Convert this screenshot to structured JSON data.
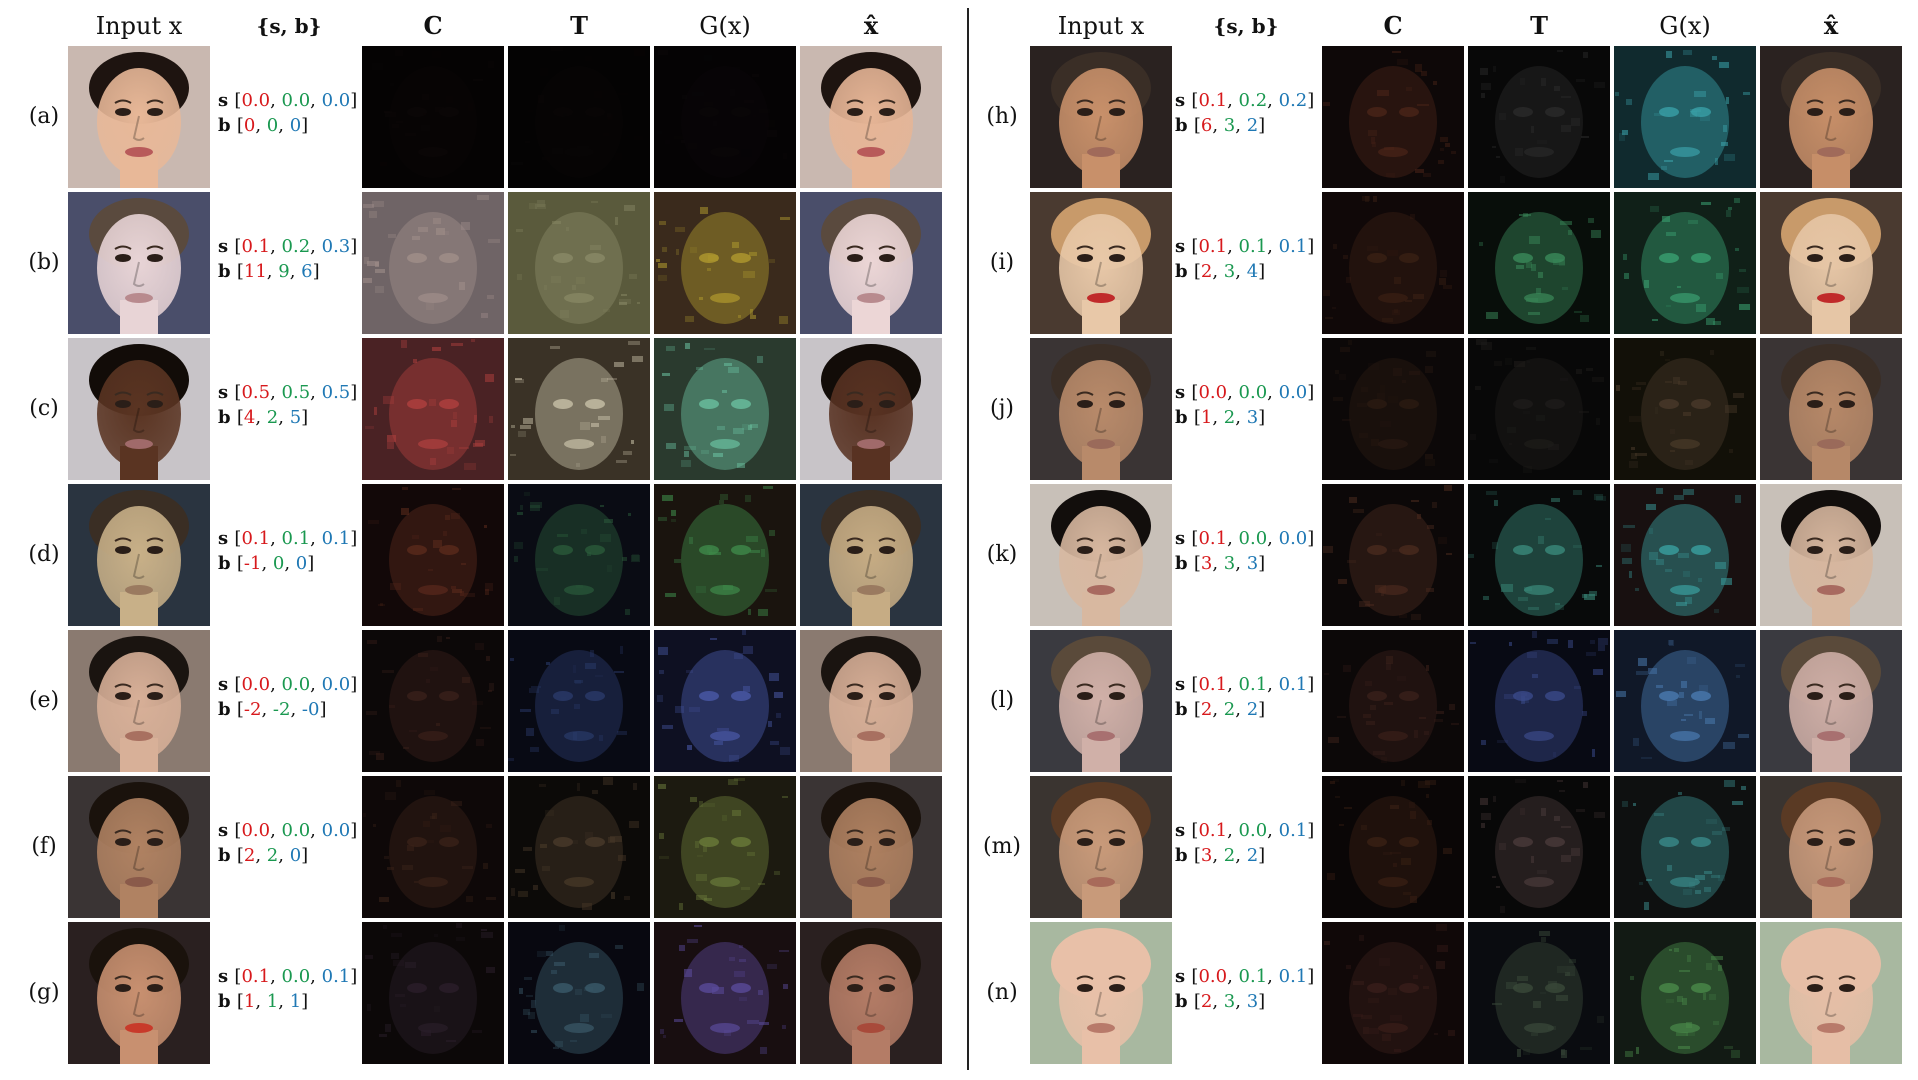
{
  "figure": {
    "headers": {
      "input": "Input x",
      "params": "{s, b}",
      "c": "C",
      "t": "T",
      "gx": "G(x)",
      "xhat": "x̂"
    },
    "palette": {
      "s0": "#d7191c",
      "s1": "#1a9850",
      "s2": "#1f78b4"
    },
    "panels": [
      {
        "rows": [
          {
            "label": "(a)",
            "s": [
              "0.0",
              "0.0",
              "0.0"
            ],
            "b": [
              "0",
              "0",
              "0"
            ],
            "input": {
              "skin": "#e8b898",
              "hair": "#1e1410",
              "bg": "#c9b8b0",
              "lips": "#b85a5a"
            },
            "C": {
              "base": "#050303",
              "glow": "#0b0707"
            },
            "T": {
              "base": "#040303",
              "glow": "#090606"
            },
            "G": {
              "base": "#050304",
              "glow": "#0a0708"
            },
            "xhat": {
              "skin": "#e6b596",
              "hair": "#1e1410",
              "bg": "#c9b8b0",
              "lips": "#b85a5a"
            }
          },
          {
            "label": "(b)",
            "s": [
              "0.1",
              "0.2",
              "0.3"
            ],
            "b": [
              "11",
              "9",
              "6"
            ],
            "input": {
              "skin": "#e8d4d6",
              "hair": "#5a4a3e",
              "bg": "#4a4e6a",
              "lips": "#b88a8e"
            },
            "C": {
              "base": "#6f6466",
              "glow": "#a08e8a"
            },
            "T": {
              "base": "#5a5a3c",
              "glow": "#8a8a66"
            },
            "G": {
              "base": "#3a2a1c",
              "glow": "#b09a2e"
            },
            "xhat": {
              "skin": "#ecd6d6",
              "hair": "#5a4a3e",
              "bg": "#4a4e6a",
              "lips": "#b88a8e"
            }
          },
          {
            "label": "(c)",
            "s": [
              "0.5",
              "0.5",
              "0.5"
            ],
            "b": [
              "4",
              "2",
              "5"
            ],
            "input": {
              "skin": "#5a3422",
              "hair": "#120c08",
              "bg": "#c8c4c8",
              "lips": "#a06a6a"
            },
            "C": {
              "base": "#4a2224",
              "glow": "#b0403e"
            },
            "T": {
              "base": "#3a3226",
              "glow": "#c8c0a8"
            },
            "G": {
              "base": "#2a3a2e",
              "glow": "#6ac0a0"
            },
            "xhat": {
              "skin": "#583222",
              "hair": "#120c08",
              "bg": "#c8c4c8",
              "lips": "#a06a6a"
            }
          },
          {
            "label": "(d)",
            "s": [
              "0.1",
              "0.1",
              "0.1"
            ],
            "b": [
              "-1",
              "0",
              "0"
            ],
            "input": {
              "skin": "#c8b088",
              "hair": "#3a2e24",
              "bg": "#2a3440",
              "lips": "#9a7a60"
            },
            "C": {
              "base": "#120808",
              "glow": "#5a2a1c"
            },
            "T": {
              "base": "#0a0c14",
              "glow": "#2a5a3a"
            },
            "G": {
              "base": "#1a140e",
              "glow": "#3e8a4a"
            },
            "xhat": {
              "skin": "#c6ac84",
              "hair": "#3a2e24",
              "bg": "#2a3440",
              "lips": "#9a7a60"
            }
          },
          {
            "label": "(e)",
            "s": [
              "0.0",
              "0.0",
              "0.0"
            ],
            "b": [
              "-2",
              "-2",
              "-0"
            ],
            "input": {
              "skin": "#d8b098",
              "hair": "#1a1410",
              "bg": "#8a7a70",
              "lips": "#a87060"
            },
            "C": {
              "base": "#0c0808",
              "glow": "#3a201a"
            },
            "T": {
              "base": "#080a14",
              "glow": "#2a3a6a"
            },
            "G": {
              "base": "#0e1022",
              "glow": "#4a5aa8"
            },
            "xhat": {
              "skin": "#d6ae96",
              "hair": "#1a1410",
              "bg": "#8a7a70",
              "lips": "#a87060"
            }
          },
          {
            "label": "(f)",
            "s": [
              "0.0",
              "0.0",
              "0.0"
            ],
            "b": [
              "2",
              "2",
              "0"
            ],
            "input": {
              "skin": "#b08262",
              "hair": "#1a120c",
              "bg": "#3a3434",
              "lips": "#8a5a4a"
            },
            "C": {
              "base": "#0e0808",
              "glow": "#3a2218"
            },
            "T": {
              "base": "#0c0a08",
              "glow": "#4a3a2a"
            },
            "G": {
              "base": "#1c1a10",
              "glow": "#6a7a3a"
            },
            "xhat": {
              "skin": "#ae8060",
              "hair": "#1a120c",
              "bg": "#3a3434",
              "lips": "#8a5a4a"
            }
          },
          {
            "label": "(g)",
            "s": [
              "0.1",
              "0.0",
              "0.1"
            ],
            "b": [
              "1",
              "1",
              "1"
            ],
            "input": {
              "skin": "#c89070",
              "hair": "#1a120c",
              "bg": "#2a2020",
              "lips": "#c83a2a"
            },
            "C": {
              "base": "#0c0808",
              "glow": "#2a1e2a"
            },
            "T": {
              "base": "#080810",
              "glow": "#3a5a6a"
            },
            "G": {
              "base": "#180e10",
              "glow": "#5a4a9a"
            },
            "xhat": {
              "skin": "#b47c66",
              "hair": "#1a120c",
              "bg": "#2a2020",
              "lips": "#a84a3a"
            }
          }
        ]
      },
      {
        "rows": [
          {
            "label": "(h)",
            "s": [
              "0.1",
              "0.2",
              "0.2"
            ],
            "b": [
              "6",
              "3",
              "2"
            ],
            "input": {
              "skin": "#c8906a",
              "hair": "#3a2e26",
              "bg": "#2a2220",
              "lips": "#a06a5a"
            },
            "C": {
              "base": "#0e0808",
              "glow": "#4a2418"
            },
            "T": {
              "base": "#080808",
              "glow": "#2a2a2a"
            },
            "G": {
              "base": "#102a2e",
              "glow": "#3aa0a8"
            },
            "xhat": {
              "skin": "#c68e68",
              "hair": "#3a2e26",
              "bg": "#2a2220",
              "lips": "#a06a5a"
            }
          },
          {
            "label": "(i)",
            "s": [
              "0.1",
              "0.1",
              "0.1"
            ],
            "b": [
              "2",
              "3",
              "4"
            ],
            "input": {
              "skin": "#e8c8a8",
              "hair": "#c89a6a",
              "bg": "#4a3a30",
              "lips": "#c02a2a"
            },
            "C": {
              "base": "#100808",
              "glow": "#3a2014"
            },
            "T": {
              "base": "#080e0a",
              "glow": "#3a8a5a"
            },
            "G": {
              "base": "#102018",
              "glow": "#3aa070"
            },
            "xhat": {
              "skin": "#e6c6a6",
              "hair": "#c89a6a",
              "bg": "#4a3a30",
              "lips": "#c02a2a"
            }
          },
          {
            "label": "(j)",
            "s": [
              "0.0",
              "0.0",
              "0.0"
            ],
            "b": [
              "1",
              "2",
              "3"
            ],
            "input": {
              "skin": "#b88a6a",
              "hair": "#3a2e26",
              "bg": "#3a3434",
              "lips": "#9a6a5a"
            },
            "C": {
              "base": "#0c0808",
              "glow": "#2a1a12"
            },
            "T": {
              "base": "#080808",
              "glow": "#1e1c1a"
            },
            "G": {
              "base": "#121008",
              "glow": "#4a3a2a"
            },
            "xhat": {
              "skin": "#b68868",
              "hair": "#3a2e26",
              "bg": "#3a3434",
              "lips": "#9a6a5a"
            }
          },
          {
            "label": "(k)",
            "s": [
              "0.1",
              "0.0",
              "0.0"
            ],
            "b": [
              "3",
              "3",
              "3"
            ],
            "input": {
              "skin": "#d8b8a0",
              "hair": "#120e0c",
              "bg": "#c8c0b8",
              "lips": "#a86a60"
            },
            "C": {
              "base": "#0c0808",
              "glow": "#4a2a1e"
            },
            "T": {
              "base": "#080a0a",
              "glow": "#3a8a7a"
            },
            "G": {
              "base": "#181010",
              "glow": "#3aa0a0"
            },
            "xhat": {
              "skin": "#d6b69e",
              "hair": "#120e0c",
              "bg": "#c8c0b8",
              "lips": "#a86a60"
            }
          },
          {
            "label": "(l)",
            "s": [
              "0.1",
              "0.1",
              "0.1"
            ],
            "b": [
              "2",
              "2",
              "2"
            ],
            "input": {
              "skin": "#d0b0a8",
              "hair": "#5a4a3a",
              "bg": "#3a3a40",
              "lips": "#a87070"
            },
            "C": {
              "base": "#0c0808",
              "glow": "#3a201a"
            },
            "T": {
              "base": "#080a14",
              "glow": "#3a4a8a"
            },
            "G": {
              "base": "#101828",
              "glow": "#4a7ab0"
            },
            "xhat": {
              "skin": "#ceaea6",
              "hair": "#5a4a3a",
              "bg": "#3a3a40",
              "lips": "#a87070"
            }
          },
          {
            "label": "(m)",
            "s": [
              "0.1",
              "0.0",
              "0.1"
            ],
            "b": [
              "3",
              "2",
              "2"
            ],
            "input": {
              "skin": "#c89a7a",
              "hair": "#5a3a24",
              "bg": "#3a3430",
              "lips": "#a86a5a"
            },
            "C": {
              "base": "#0a0606",
              "glow": "#3a2014"
            },
            "T": {
              "base": "#080808",
              "glow": "#4a3a3a"
            },
            "G": {
              "base": "#0e1010",
              "glow": "#3a8a8a"
            },
            "xhat": {
              "skin": "#c6987a",
              "hair": "#5a3a24",
              "bg": "#3a3430",
              "lips": "#a86a5a"
            }
          },
          {
            "label": "(n)",
            "s": [
              "0.0",
              "0.1",
              "0.1"
            ],
            "b": [
              "2",
              "3",
              "3"
            ],
            "input": {
              "skin": "#e8c0a8",
              "hair": "#e8c0a8",
              "bg": "#a8b8a0",
              "lips": "#b87a6a"
            },
            "C": {
              "base": "#100808",
              "glow": "#3a1e1a"
            },
            "T": {
              "base": "#0a0c10",
              "glow": "#3a4a3a"
            },
            "G": {
              "base": "#121a14",
              "glow": "#4a8a4a"
            },
            "xhat": {
              "skin": "#e6bea6",
              "hair": "#e6bea6",
              "bg": "#a8b8a0",
              "lips": "#b87a6a"
            }
          }
        ]
      }
    ]
  }
}
